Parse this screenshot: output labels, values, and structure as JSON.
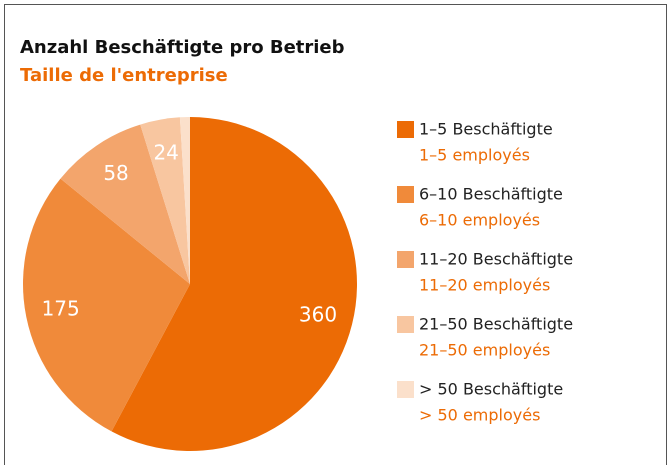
{
  "chart_data": {
    "type": "pie",
    "title": "Anzahl Beschäftigte pro Betrieb",
    "subtitle": "Taille de l'entreprise",
    "categories": [
      "1–5 Beschäftigte",
      "6–10 Beschäftigte",
      "11–20 Beschäftigte",
      "21–50 Beschäftigte",
      "> 50 Beschäftigte"
    ],
    "categories_fr": [
      "1–5 employés",
      "6–10 employés",
      "11–20 employés",
      "21–50 employés",
      "> 50 employés"
    ],
    "values": [
      360,
      175,
      58,
      24,
      6
    ],
    "value_labels": [
      "360",
      "175",
      "58",
      "24",
      null
    ],
    "colors": [
      "#ec6b05",
      "#f08a3a",
      "#f3a56c",
      "#f8c6a0",
      "#fbe0cb"
    ],
    "start_angle": 0,
    "direction": "clockwise",
    "legend": "right"
  }
}
